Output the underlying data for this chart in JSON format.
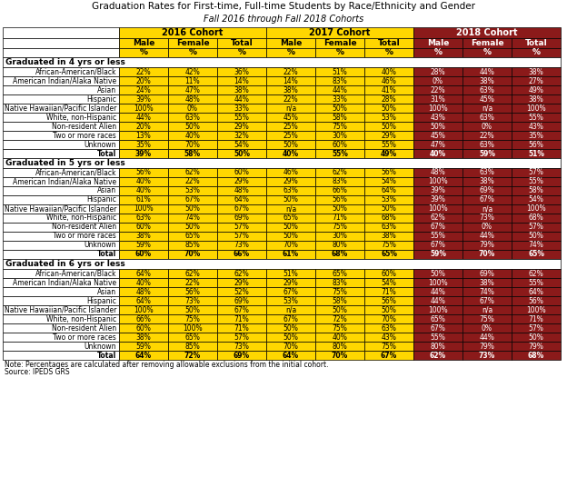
{
  "title": "Graduation Rates for First-time, Full-time Students by Race/Ethnicity and Gender",
  "subtitle": "Fall 2016 through Fall 2018 Cohorts",
  "note": "Note: Percentages are calculated after removing allowable exclusions from the initial cohort.",
  "source": "Source: IPEDS GRS",
  "cohort_headers": [
    "2016 Cohort",
    "2017 Cohort",
    "2018 Cohort"
  ],
  "col_headers": [
    "Male",
    "Female",
    "Total",
    "Male",
    "Female",
    "Total",
    "Male",
    "Female",
    "Total"
  ],
  "col_subheaders": [
    "%",
    "%",
    "%",
    "%",
    "%",
    "%",
    "%",
    "%",
    "%"
  ],
  "sections": [
    {
      "label": "Graduated in 4 yrs or less",
      "rows": [
        [
          "African-American/Black",
          "22%",
          "42%",
          "36%",
          "22%",
          "51%",
          "40%",
          "28%",
          "44%",
          "38%"
        ],
        [
          "American Indian/Alaka Native",
          "20%",
          "11%",
          "14%",
          "14%",
          "83%",
          "46%",
          "0%",
          "38%",
          "27%"
        ],
        [
          "Asian",
          "24%",
          "47%",
          "38%",
          "38%",
          "44%",
          "41%",
          "22%",
          "63%",
          "49%"
        ],
        [
          "Hispanic",
          "39%",
          "48%",
          "44%",
          "22%",
          "33%",
          "28%",
          "31%",
          "45%",
          "38%"
        ],
        [
          "Native Hawaiian/Pacific Islander",
          "100%",
          "0%",
          "33%",
          "n/a",
          "50%",
          "50%",
          "100%",
          "n/a",
          "100%"
        ],
        [
          "White, non-Hispanic",
          "44%",
          "63%",
          "55%",
          "45%",
          "58%",
          "53%",
          "43%",
          "63%",
          "55%"
        ],
        [
          "Non-resident Alien",
          "20%",
          "50%",
          "29%",
          "25%",
          "75%",
          "50%",
          "50%",
          "0%",
          "43%"
        ],
        [
          "Two or more races",
          "13%",
          "40%",
          "32%",
          "25%",
          "30%",
          "29%",
          "45%",
          "22%",
          "35%"
        ],
        [
          "Unknown",
          "35%",
          "70%",
          "54%",
          "50%",
          "60%",
          "55%",
          "47%",
          "63%",
          "56%"
        ],
        [
          "Total",
          "39%",
          "58%",
          "50%",
          "40%",
          "55%",
          "49%",
          "40%",
          "59%",
          "51%"
        ]
      ]
    },
    {
      "label": "Graduated in 5 yrs or less",
      "rows": [
        [
          "African-American/Black",
          "56%",
          "62%",
          "60%",
          "46%",
          "62%",
          "56%",
          "48%",
          "63%",
          "57%"
        ],
        [
          "American Indian/Alaka Native",
          "40%",
          "22%",
          "29%",
          "29%",
          "83%",
          "54%",
          "100%",
          "38%",
          "55%"
        ],
        [
          "Asian",
          "40%",
          "53%",
          "48%",
          "63%",
          "66%",
          "64%",
          "39%",
          "69%",
          "58%"
        ],
        [
          "Hispanic",
          "61%",
          "67%",
          "64%",
          "50%",
          "56%",
          "53%",
          "39%",
          "67%",
          "54%"
        ],
        [
          "Native Hawaiian/Pacific Islander",
          "100%",
          "50%",
          "67%",
          "n/a",
          "50%",
          "50%",
          "100%",
          "n/a",
          "100%"
        ],
        [
          "White, non-Hispanic",
          "63%",
          "74%",
          "69%",
          "65%",
          "71%",
          "68%",
          "62%",
          "73%",
          "68%"
        ],
        [
          "Non-resident Alien",
          "60%",
          "50%",
          "57%",
          "50%",
          "75%",
          "63%",
          "67%",
          "0%",
          "57%"
        ],
        [
          "Two or more races",
          "38%",
          "65%",
          "57%",
          "50%",
          "30%",
          "38%",
          "55%",
          "44%",
          "50%"
        ],
        [
          "Unknown",
          "59%",
          "85%",
          "73%",
          "70%",
          "80%",
          "75%",
          "67%",
          "79%",
          "74%"
        ],
        [
          "Total",
          "60%",
          "70%",
          "66%",
          "61%",
          "68%",
          "65%",
          "59%",
          "70%",
          "65%"
        ]
      ]
    },
    {
      "label": "Graduated in 6 yrs or less",
      "rows": [
        [
          "African-American/Black",
          "64%",
          "62%",
          "62%",
          "51%",
          "65%",
          "60%",
          "50%",
          "69%",
          "62%"
        ],
        [
          "American Indian/Alaka Native",
          "40%",
          "22%",
          "29%",
          "29%",
          "83%",
          "54%",
          "100%",
          "38%",
          "55%"
        ],
        [
          "Asian",
          "48%",
          "56%",
          "52%",
          "67%",
          "75%",
          "71%",
          "44%",
          "74%",
          "64%"
        ],
        [
          "Hispanic",
          "64%",
          "73%",
          "69%",
          "53%",
          "58%",
          "56%",
          "44%",
          "67%",
          "56%"
        ],
        [
          "Native Hawaiian/Pacific Islander",
          "100%",
          "50%",
          "67%",
          "n/a",
          "50%",
          "50%",
          "100%",
          "n/a",
          "100%"
        ],
        [
          "White, non-Hispanic",
          "66%",
          "75%",
          "71%",
          "67%",
          "72%",
          "70%",
          "65%",
          "75%",
          "71%"
        ],
        [
          "Non-resident Alien",
          "60%",
          "100%",
          "71%",
          "50%",
          "75%",
          "63%",
          "67%",
          "0%",
          "57%"
        ],
        [
          "Two or more races",
          "38%",
          "65%",
          "57%",
          "50%",
          "40%",
          "43%",
          "55%",
          "44%",
          "50%"
        ],
        [
          "Unknown",
          "59%",
          "85%",
          "73%",
          "70%",
          "80%",
          "75%",
          "80%",
          "79%",
          "79%"
        ],
        [
          "Total",
          "64%",
          "72%",
          "69%",
          "64%",
          "70%",
          "67%",
          "62%",
          "73%",
          "68%"
        ]
      ]
    }
  ],
  "yellow_bg": "#FFD700",
  "dark_red_bg": "#8B1A1A",
  "white_bg": "#FFFFFF",
  "black_text": "#000000",
  "white_text": "#FFFFFF"
}
